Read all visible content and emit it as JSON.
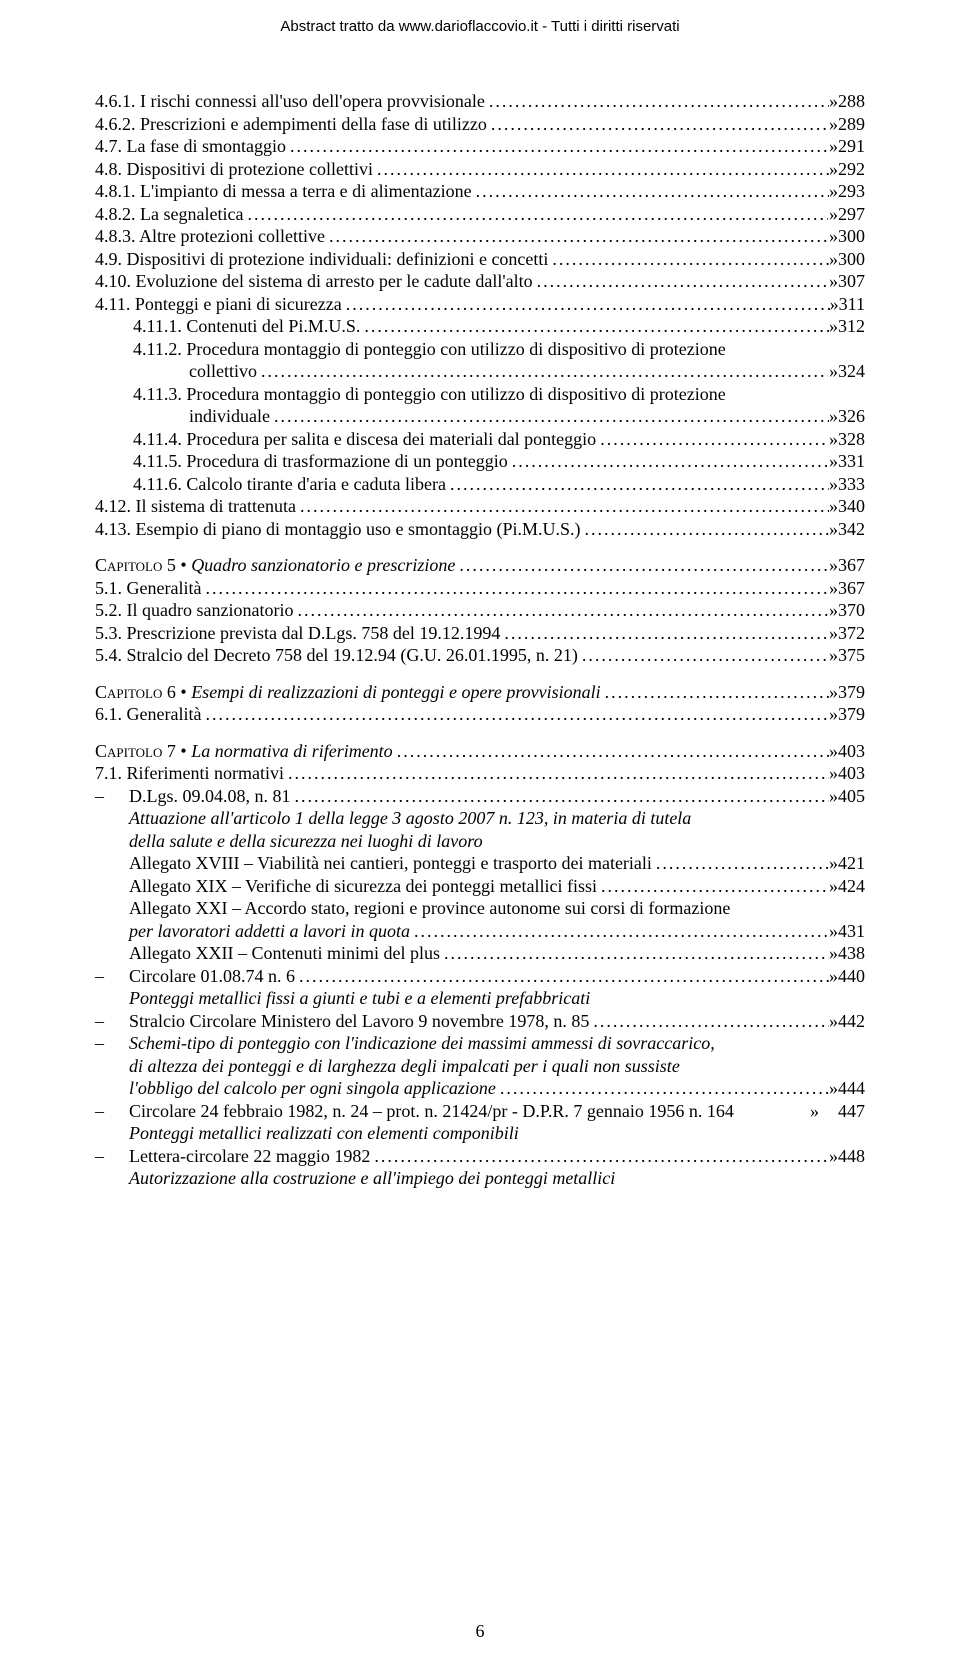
{
  "header": "Abstract tratto da www.darioflaccovio.it - Tutti i diritti riservati",
  "page_number": "6",
  "toc1": [
    {
      "label": "4.6.1. I rischi connessi all'uso dell'opera provvisionale",
      "p": "288"
    },
    {
      "label": "4.6.2. Prescrizioni e adempimenti della fase di utilizzo",
      "p": "289"
    },
    {
      "label": "4.7. La fase di smontaggio",
      "p": "291"
    },
    {
      "label": "4.8. Dispositivi di protezione collettivi",
      "p": "292"
    },
    {
      "label": "4.8.1. L'impianto di messa a terra e di alimentazione",
      "p": "293"
    },
    {
      "label": "4.8.2. La segnaletica",
      "p": "297"
    },
    {
      "label": "4.8.3. Altre protezioni collettive",
      "p": "300"
    },
    {
      "label": "4.9. Dispositivi di protezione individuali: definizioni e concetti",
      "p": "300"
    },
    {
      "label": "4.10. Evoluzione del sistema di arresto per le cadute dall'alto",
      "p": "307"
    },
    {
      "label": "4.11. Ponteggi e piani di sicurezza",
      "p": "311"
    },
    {
      "label": "4.11.1. Contenuti del Pi.M.U.S.",
      "p": "312",
      "indent": 1
    },
    {
      "label": "4.11.2. Procedura montaggio di ponteggio con utilizzo di dispositivo di protezione",
      "indent": 1,
      "wrap": "collettivo",
      "p": "324"
    },
    {
      "label": "4.11.3. Procedura montaggio di ponteggio con utilizzo di dispositivo di protezione",
      "indent": 1,
      "wrap": "individuale",
      "p": "326"
    },
    {
      "label": "4.11.4. Procedura per salita e discesa dei materiali dal ponteggio",
      "p": "328",
      "indent": 1
    },
    {
      "label": "4.11.5. Procedura di trasformazione di un ponteggio",
      "p": "331",
      "indent": 1
    },
    {
      "label": "4.11.6. Calcolo tirante d'aria e caduta libera",
      "p": "333",
      "indent": 1
    },
    {
      "label": "4.12. Il sistema di trattenuta",
      "p": "340"
    },
    {
      "label": "4.13. Esempio di piano di montaggio uso e smontaggio (Pi.M.U.S.)",
      "p": "342"
    }
  ],
  "cap5_head": {
    "caps": "Capitolo 5 • ",
    "ital": "Quadro sanzionatorio e prescrizione",
    "p": "367"
  },
  "cap5": [
    {
      "label": "5.1. Generalità",
      "p": "367"
    },
    {
      "label": "5.2. Il quadro sanzionatorio",
      "p": "370"
    },
    {
      "label": "5.3. Prescrizione prevista dal D.Lgs. 758 del 19.12.1994",
      "p": "372"
    },
    {
      "label": "5.4. Stralcio del Decreto 758 del 19.12.94 (G.U. 26.01.1995, n. 21)",
      "p": "375"
    }
  ],
  "cap6_head": {
    "caps": "Capitolo 6 • ",
    "ital": "Esempi di realizzazioni di ponteggi e opere provvisionali",
    "p": "379"
  },
  "cap6": [
    {
      "label": "6.1. Generalità",
      "p": "379"
    }
  ],
  "cap7_head": {
    "caps": "Capitolo 7 • ",
    "ital": "La normativa di riferimento",
    "p": "403"
  },
  "cap7": [
    {
      "label": "7.1. Riferimenti normativi",
      "p": "403"
    }
  ],
  "dash": [
    {
      "t": "D.Lgs. 09.04.08, n. 81",
      "p": "405",
      "sub_ital": [
        "Attuazione all'articolo 1 della legge 3 agosto 2007 n. 123, in materia di tutela",
        "della salute e della sicurezza nei luoghi di lavoro"
      ],
      "extras": [
        {
          "t": "Allegato XVIII – Viabilità nei cantieri, ponteggi e trasporto dei materiali",
          "p": "421",
          "ital_pre": ""
        },
        {
          "t": "Allegato XIX – Verifiche di sicurezza dei ponteggi metallici fissi",
          "p": "424"
        },
        {
          "t": "Allegato XXI – Accordo stato, regioni e province autonome sui corsi di formazione",
          "wrap_ital": "per lavoratori addetti a lavori in quota",
          "p": "431"
        },
        {
          "t": "Allegato XXII – Contenuti minimi del plus",
          "p": "438"
        }
      ]
    },
    {
      "t": "Circolare 01.08.74 n. 6",
      "p": "440",
      "sub_ital": [
        "Ponteggi metallici fissi a giunti e tubi e a elementi prefabbricati"
      ]
    },
    {
      "t": "Stralcio Circolare Ministero del Lavoro 9 novembre 1978, n. 85",
      "p": "442"
    },
    {
      "t_multi": [
        "Schemi-tipo di ponteggio con l'indicazione dei massimi ammessi di sovraccarico,",
        "di altezza dei ponteggi e di larghezza degli impalcati per i quali non sussiste"
      ],
      "t_last": "l'obbligo del calcolo per ogni singola applicazione",
      "p": "444",
      "ital_all": true
    },
    {
      "t": "Circolare 24 febbraio 1982, n. 24 – prot. n. 21424/pr - D.P.R. 7 gennaio 1956 n. 164",
      "p": "447",
      "noleader": true,
      "sub_ital": [
        "Ponteggi metallici realizzati con elementi componibili"
      ]
    },
    {
      "t": "Lettera-circolare 22 maggio 1982",
      "p": "448",
      "sub_ital": [
        "Autorizzazione alla costruzione e all'impiego dei ponteggi metallici"
      ]
    }
  ]
}
